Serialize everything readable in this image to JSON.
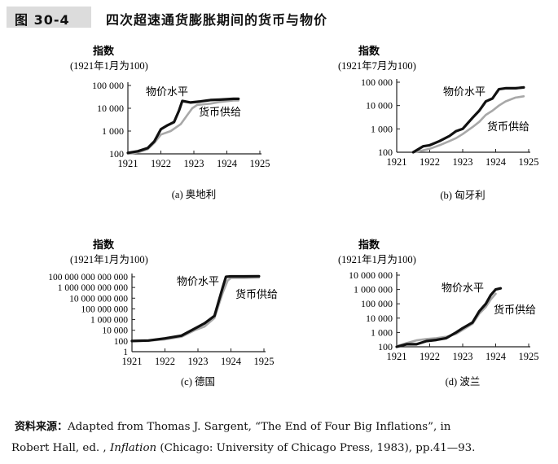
{
  "header": {
    "figure_number": "图 30-4",
    "title": "四次超速通货膨胀期间的货币与物价"
  },
  "colors": {
    "price_line": "#111111",
    "money_line": "#a8a8a8",
    "axis": "#222222",
    "badge_bg": "#dcdcdc"
  },
  "chart_data": [
    {
      "type": "line",
      "caption": "(a) 奥地利",
      "ylabel": "指数",
      "ylabel_sub": "(1921年1月为100)",
      "y_scale": "log10",
      "ylim": [
        100,
        100000
      ],
      "yticks": [
        100,
        1000,
        10000,
        100000
      ],
      "ytick_labels": [
        "100",
        "1 000",
        "10 000",
        "100 000"
      ],
      "xlim": [
        1921,
        1925
      ],
      "xticks": [
        "1921",
        "1922",
        "1923",
        "1924",
        "1925"
      ],
      "series": [
        {
          "name": "物价水平",
          "x": [
            1921.0,
            1921.3,
            1921.6,
            1921.8,
            1922.0,
            1922.2,
            1922.4,
            1922.55,
            1922.65,
            1922.9,
            1923.2,
            1923.5,
            1923.8,
            1924.2,
            1924.35
          ],
          "y": [
            110,
            130,
            180,
            350,
            1200,
            1800,
            2500,
            8000,
            21000,
            18000,
            20000,
            23000,
            24000,
            26000,
            26000
          ]
        },
        {
          "name": "货币供给",
          "x": [
            1921.0,
            1921.3,
            1921.6,
            1921.8,
            1922.0,
            1922.3,
            1922.6,
            1922.8,
            1922.95,
            1923.1,
            1923.5,
            1923.8,
            1924.2,
            1924.35
          ],
          "y": [
            100,
            115,
            160,
            300,
            700,
            1000,
            2000,
            5000,
            10000,
            14000,
            16000,
            19000,
            22000,
            22000
          ]
        }
      ]
    },
    {
      "type": "line",
      "caption": "(b) 匈牙利",
      "ylabel": "指数",
      "ylabel_sub": "(1921年7月为100)",
      "y_scale": "log10",
      "ylim": [
        100,
        100000
      ],
      "yticks": [
        100,
        1000,
        10000,
        100000
      ],
      "ytick_labels": [
        "100",
        "1 000",
        "10 000",
        "100 000"
      ],
      "xlim": [
        1921,
        1925
      ],
      "xticks": [
        "1921",
        "1922",
        "1923",
        "1924",
        "1925"
      ],
      "series": [
        {
          "name": "物价水平",
          "x": [
            1921.5,
            1921.8,
            1922.0,
            1922.3,
            1922.6,
            1922.8,
            1923.0,
            1923.3,
            1923.5,
            1923.7,
            1923.9,
            1924.1,
            1924.3,
            1924.6,
            1924.85
          ],
          "y": [
            100,
            180,
            200,
            300,
            500,
            800,
            1000,
            3000,
            6000,
            15000,
            20000,
            50000,
            55000,
            55000,
            60000
          ]
        },
        {
          "name": "货币供给",
          "x": [
            1921.5,
            1921.8,
            1922.0,
            1922.3,
            1922.6,
            1922.8,
            1923.0,
            1923.3,
            1923.5,
            1923.7,
            1923.9,
            1924.1,
            1924.3,
            1924.6,
            1924.85
          ],
          "y": [
            100,
            120,
            140,
            200,
            300,
            400,
            600,
            1200,
            2000,
            4000,
            6000,
            10000,
            15000,
            22000,
            25000
          ]
        }
      ]
    },
    {
      "type": "line",
      "caption": "(c) 德国",
      "ylabel": "指数",
      "ylabel_sub": "(1921年1月为100)",
      "y_scale": "log10",
      "ylim": [
        1,
        100000000000000
      ],
      "yticks": [
        1,
        100,
        10000,
        1000000,
        100000000,
        10000000000,
        1000000000000,
        100000000000000
      ],
      "ytick_labels": [
        "1",
        "100",
        "10 000",
        "1 000 000",
        "100 000 000",
        "10 000 000 000",
        "1 000 000 000 000",
        "100 000 000 000 000"
      ],
      "xlim": [
        1921,
        1925
      ],
      "xticks": [
        "1921",
        "1922",
        "1923",
        "1924",
        "1925"
      ],
      "series": [
        {
          "name": "物价水平",
          "x": [
            1921.0,
            1921.5,
            1922.0,
            1922.5,
            1922.9,
            1923.2,
            1923.5,
            1923.75,
            1923.85,
            1924.0,
            1924.4,
            1924.85
          ],
          "y": [
            100,
            120,
            300,
            1000,
            20000,
            200000,
            5000000,
            1000000000000,
            100000000000000,
            120000000000000,
            120000000000000,
            130000000000000
          ]
        },
        {
          "name": "货币供给",
          "x": [
            1921.0,
            1921.5,
            1922.0,
            1922.5,
            1922.9,
            1923.2,
            1923.5,
            1923.75,
            1923.9,
            1924.0,
            1924.4,
            1924.85
          ],
          "y": [
            100,
            110,
            200,
            600,
            10000,
            50000,
            2000000,
            100000000000,
            20000000000000,
            60000000000000,
            60000000000000,
            70000000000000
          ]
        }
      ]
    },
    {
      "type": "line",
      "caption": "(d) 波兰",
      "ylabel": "指数",
      "ylabel_sub": "(1921年1月为100)",
      "y_scale": "log10",
      "ylim": [
        100,
        10000000
      ],
      "yticks": [
        100,
        1000,
        10000,
        100000,
        1000000,
        10000000
      ],
      "ytick_labels": [
        "100",
        "1 000",
        "10 000",
        "100 000",
        "1 000 000",
        "10 000 000"
      ],
      "xlim": [
        1921,
        1925
      ],
      "xticks": [
        "1921",
        "1922",
        "1923",
        "1924",
        "1925"
      ],
      "series": [
        {
          "name": "物价水平",
          "x": [
            1921.0,
            1921.3,
            1921.6,
            1921.9,
            1922.2,
            1922.5,
            1922.8,
            1923.0,
            1923.3,
            1923.5,
            1923.7,
            1923.85,
            1924.0,
            1924.15
          ],
          "y": [
            100,
            150,
            150,
            250,
            300,
            400,
            1000,
            2000,
            5000,
            30000,
            100000,
            400000,
            1000000,
            1200000
          ]
        },
        {
          "name": "货币供给",
          "x": [
            1921.0,
            1921.3,
            1921.6,
            1921.9,
            1922.2,
            1922.5,
            1922.8,
            1923.0,
            1923.3,
            1923.5,
            1923.7,
            1923.85,
            1924.0
          ],
          "y": [
            110,
            180,
            280,
            350,
            400,
            500,
            800,
            1500,
            4000,
            20000,
            60000,
            200000,
            500000
          ]
        }
      ]
    }
  ],
  "source": {
    "label": "资料来源：",
    "line1": "Adapted from Thomas J. Sargent, “The End of Four Big Inflations”, in",
    "line2_pre": "Robert Hall, ed. , ",
    "line2_title": "Inflation",
    "line2_post": " (Chicago: University of Chicago Press, 1983), pp.41—93."
  }
}
